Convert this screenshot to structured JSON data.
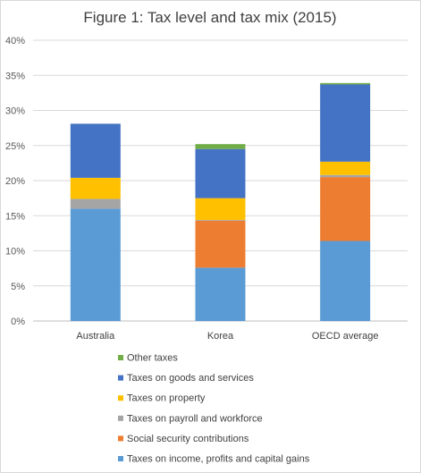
{
  "chart_data": {
    "type": "bar",
    "stacked": true,
    "title": "Figure 1: Tax level and tax mix (2015)",
    "xlabel": "",
    "ylabel": "",
    "ylim": [
      0,
      40
    ],
    "yticks": [
      "0%",
      "5%",
      "10%",
      "15%",
      "20%",
      "25%",
      "30%",
      "35%",
      "40%"
    ],
    "categories": [
      "Australia",
      "Korea",
      "OECD average"
    ],
    "grid": true,
    "legend_position": "bottom",
    "series": [
      {
        "name": "Taxes on income, profits and capital gains",
        "color": "#5b9bd5",
        "values": [
          16.0,
          7.6,
          11.4
        ]
      },
      {
        "name": "Social security contributions",
        "color": "#ed7d31",
        "values": [
          0.0,
          6.7,
          9.1
        ]
      },
      {
        "name": "Taxes on payroll and workforce",
        "color": "#a5a5a5",
        "values": [
          1.4,
          0.1,
          0.3
        ]
      },
      {
        "name": "Taxes on property",
        "color": "#ffc000",
        "values": [
          3.0,
          3.1,
          1.9
        ]
      },
      {
        "name": "Taxes on goods and services",
        "color": "#4472c4",
        "values": [
          7.7,
          7.0,
          11.0
        ]
      },
      {
        "name": "Other taxes",
        "color": "#70ad47",
        "values": [
          0.0,
          0.7,
          0.2
        ]
      }
    ]
  }
}
